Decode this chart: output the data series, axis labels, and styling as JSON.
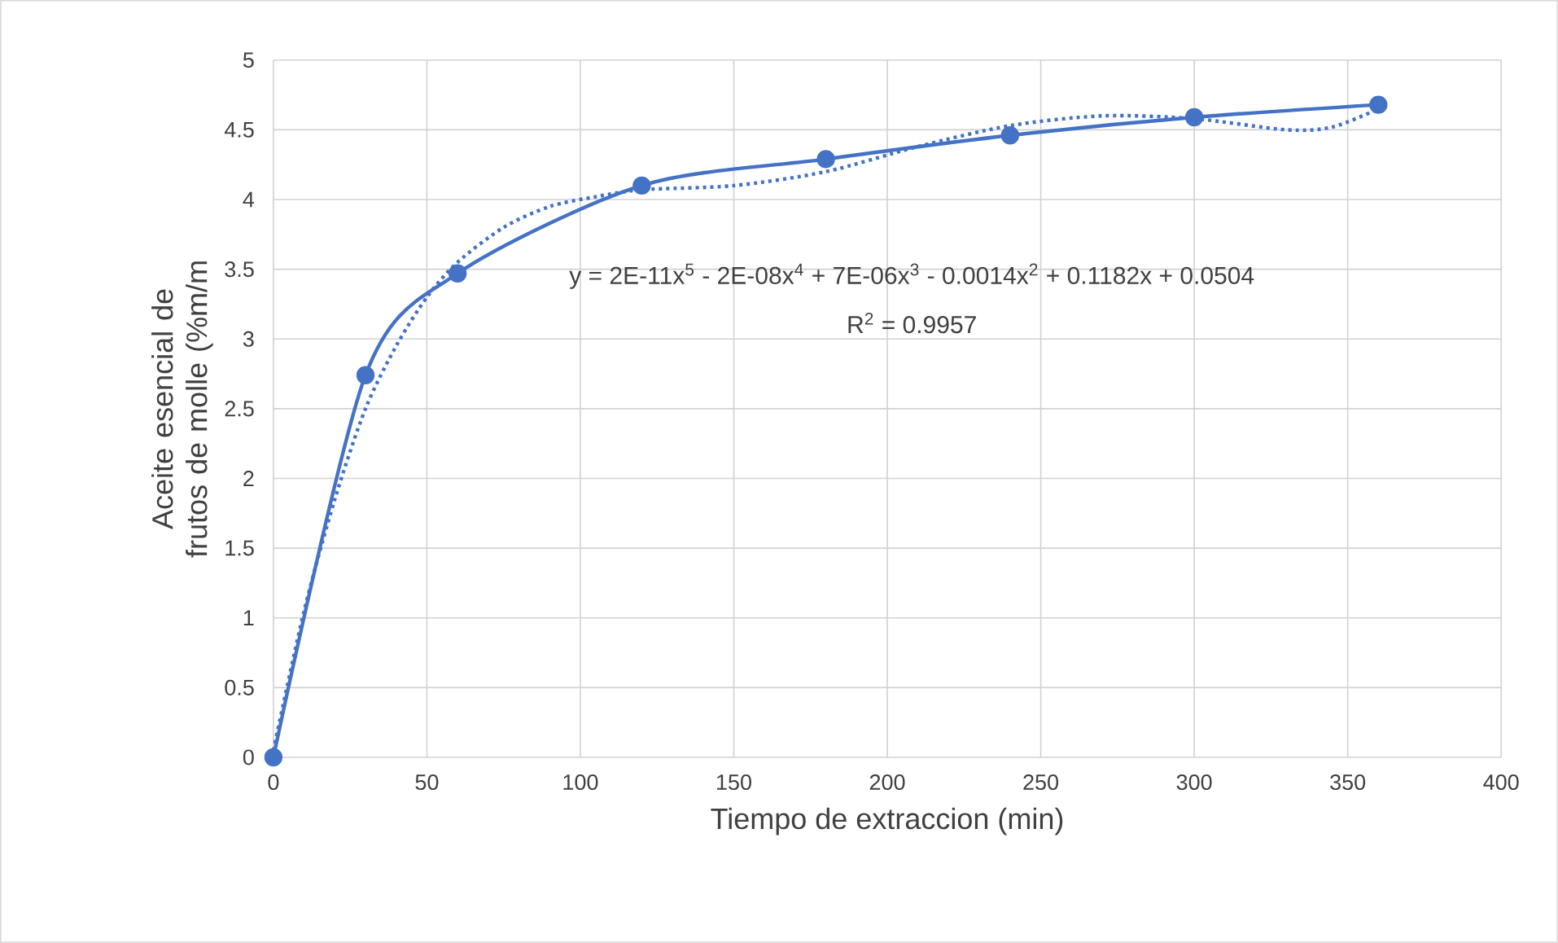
{
  "chart_data": {
    "type": "line",
    "xlabel": "Tiempo de extraccion (min)",
    "ylabel": "Aceite esencial de frutos de molle (%m/m",
    "xlim": [
      0,
      400
    ],
    "ylim": [
      0,
      5
    ],
    "xticks": [
      0,
      50,
      100,
      150,
      200,
      250,
      300,
      350,
      400
    ],
    "yticks": [
      0,
      0.5,
      1,
      1.5,
      2,
      2.5,
      3,
      3.5,
      4,
      4.5,
      5
    ],
    "grid": true,
    "series": [
      {
        "type": "line",
        "color": "#4472c4",
        "marker": "circle",
        "line_style": "solid",
        "x": [
          0,
          30,
          60,
          120,
          180,
          240,
          300,
          360
        ],
        "values": [
          0,
          2.74,
          3.47,
          4.1,
          4.29,
          4.46,
          4.59,
          4.68
        ]
      },
      {
        "type": "line",
        "color": "#4472c4",
        "marker": "none",
        "line_style": "dotted",
        "x": [
          0,
          10,
          20,
          30,
          40,
          50,
          60,
          75,
          90,
          105,
          120,
          150,
          180,
          210,
          240,
          270,
          300,
          330,
          345,
          360
        ],
        "values": [
          0.05,
          1.05,
          1.85,
          2.5,
          2.95,
          3.3,
          3.55,
          3.8,
          3.95,
          4.02,
          4.07,
          4.1,
          4.2,
          4.38,
          4.53,
          4.6,
          4.58,
          4.5,
          4.52,
          4.65
        ]
      }
    ],
    "annotations": [
      "y = 2E-11x$^{5}$ - 2E-08x$^{4}$ + 7E-06x$^{3}$ - 0.0014x$^{2}$ + 0.1182x + 0.0504",
      "R$^{2}$ = 0.9957"
    ]
  }
}
